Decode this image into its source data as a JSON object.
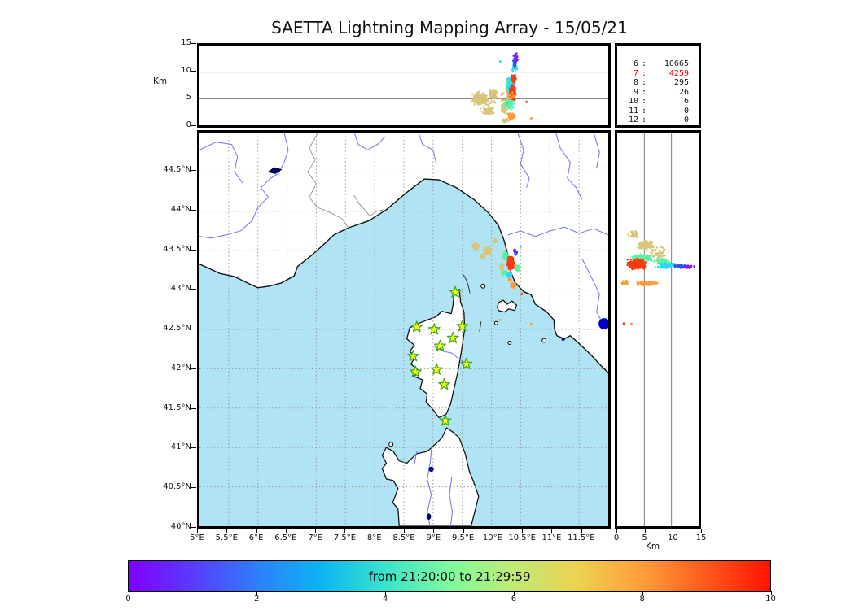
{
  "title": "SAETTA Lightning Mapping Array - 15/05/21",
  "axes": {
    "alt_axis_label": "Km",
    "alt_ticks": [
      "15",
      "10",
      "5",
      "0"
    ],
    "lat_ticks": [
      "44.5°N",
      "44°N",
      "43.5°N",
      "43°N",
      "42.5°N",
      "42°N",
      "41.5°N",
      "41°N",
      "40.5°N",
      "40°N"
    ],
    "lon_ticks": [
      "5°E",
      "5.5°E",
      "6°E",
      "6.5°E",
      "7°E",
      "7.5°E",
      "8°E",
      "8.5°E",
      "9°E",
      "9.5°E",
      "10°E",
      "10.5°E",
      "11°E",
      "11.5°E"
    ],
    "km_ticks": [
      "0",
      "5",
      "10",
      "15"
    ],
    "km_axis_label": "Km"
  },
  "stats": {
    "rows": [
      {
        "key": "6",
        "value": "10665",
        "highlight": false
      },
      {
        "key": "7",
        "value": "4259",
        "highlight": true
      },
      {
        "key": "8",
        "value": "295",
        "highlight": false
      },
      {
        "key": "9",
        "value": "26",
        "highlight": false
      },
      {
        "key": "10",
        "value": "6",
        "highlight": false
      },
      {
        "key": "11",
        "value": "0",
        "highlight": false
      },
      {
        "key": "12",
        "value": "0",
        "highlight": false
      }
    ]
  },
  "colorbar": {
    "label": "from 21:20:00 to 21:29:59",
    "ticks": [
      "0",
      "2",
      "4",
      "6",
      "8",
      "10"
    ],
    "min": 0,
    "max": 10,
    "colormap": "rainbow",
    "stops": [
      "#7f00ff",
      "#5a3bfe",
      "#2e7efb",
      "#0cb5f1",
      "#3ae3cb",
      "#7efb9e",
      "#c0ea74",
      "#ecd24f",
      "#ff9e3b",
      "#ff5a1e",
      "#ff1200"
    ]
  },
  "chart_data": {
    "type": "scatter",
    "title": "SAETTA Lightning Mapping Array - 15/05/21",
    "time_window": {
      "from": "21:20:00",
      "to": "21:29:59"
    },
    "panels": {
      "alt_vs_lon": {
        "xlim": [
          5,
          12
        ],
        "ylim": [
          0,
          15
        ],
        "ylabel": "Km",
        "yticks": [
          0,
          5,
          10,
          15
        ],
        "grid_y": [
          5,
          10
        ]
      },
      "map": {
        "lon_lim": [
          5,
          12
        ],
        "lat_lim": [
          40,
          45
        ],
        "lon_ticks": [
          5,
          5.5,
          6,
          6.5,
          7,
          7.5,
          8,
          8.5,
          9,
          9.5,
          10,
          10.5,
          11,
          11.5
        ],
        "lat_ticks": [
          40,
          40.5,
          41,
          41.5,
          42,
          42.5,
          43,
          43.5,
          44,
          44.5
        ],
        "grid": "dotted",
        "sea_color": "#b0e4f5",
        "land_color": "#ffffff",
        "river_color": "#7b7bf0",
        "border_color": "#999999",
        "lake_color": "#000080"
      },
      "alt_vs_lat": {
        "xlim": [
          0,
          15
        ],
        "xlabel": "Km",
        "xticks": [
          0,
          5,
          10,
          15
        ],
        "grid_x": [
          5,
          10
        ]
      }
    },
    "station_counts": [
      [
        "6",
        10665
      ],
      [
        "7",
        4259
      ],
      [
        "8",
        295
      ],
      [
        "9",
        26
      ],
      [
        "10",
        6
      ],
      [
        "11",
        0
      ],
      [
        "12",
        0
      ]
    ],
    "stations_lon_lat": [
      [
        9.38,
        42.97
      ],
      [
        8.72,
        42.53
      ],
      [
        9.02,
        42.5
      ],
      [
        9.5,
        42.54
      ],
      [
        9.34,
        42.39
      ],
      [
        9.12,
        42.29
      ],
      [
        8.66,
        42.16
      ],
      [
        9.57,
        42.06
      ],
      [
        9.06,
        41.99
      ],
      [
        8.7,
        41.96
      ],
      [
        9.19,
        41.8
      ],
      [
        9.21,
        41.34
      ]
    ],
    "station_marker": {
      "shape": "star",
      "fill": "#ffff00",
      "stroke": "#3aa82c"
    },
    "palette": {
      "tan": "#d9c57a",
      "green": "#5df0a0",
      "cyan": "#2bd9f2",
      "blue": "#2a52f5",
      "purple": "#8714fc",
      "red": "#f83a12",
      "orange": "#ff9a3c"
    },
    "clusters_alt_vs_lon": [
      [
        "tan",
        9.8,
        5.0,
        0.16,
        1.5,
        230
      ],
      [
        "tan",
        10.02,
        5.8,
        0.09,
        1.1,
        110
      ],
      [
        "tan",
        9.93,
        2.7,
        0.12,
        0.9,
        70
      ],
      [
        "tan",
        9.88,
        4.6,
        0.3,
        1.9,
        60
      ],
      [
        "tan",
        10.22,
        3.2,
        0.07,
        1.6,
        90
      ],
      [
        "tan",
        10.24,
        0.9,
        0.1,
        0.5,
        40
      ],
      [
        "green",
        10.32,
        7.2,
        0.08,
        2.4,
        260
      ],
      [
        "green",
        10.3,
        4.0,
        0.1,
        1.5,
        80
      ],
      [
        "cyan",
        10.34,
        7.0,
        0.12,
        3.4,
        80
      ],
      [
        "cyan",
        10.4,
        11.0,
        0.05,
        1.5,
        40
      ],
      [
        "blue",
        10.4,
        12.0,
        0.045,
        1.2,
        45
      ],
      [
        "purple",
        10.42,
        12.8,
        0.035,
        1.0,
        40
      ],
      [
        "red",
        10.36,
        6.2,
        0.055,
        1.6,
        360
      ],
      [
        "red",
        10.38,
        8.8,
        0.045,
        0.9,
        90
      ],
      [
        "orange",
        10.34,
        1.7,
        0.1,
        0.9,
        60
      ],
      [
        "orange",
        10.3,
        5.5,
        0.25,
        3.0,
        25
      ]
    ],
    "singles_alt_vs_lon": [
      [
        "orange",
        10.68,
        1.3
      ],
      [
        "red",
        10.6,
        4.4
      ],
      [
        "cyan",
        10.15,
        12.0
      ]
    ],
    "clusters_map": [
      [
        "tan",
        9.73,
        43.555,
        0.065,
        0.045,
        150
      ],
      [
        "tan",
        9.935,
        43.5,
        0.075,
        0.055,
        190
      ],
      [
        "tan",
        10.06,
        43.625,
        0.04,
        0.03,
        40
      ],
      [
        "tan",
        9.85,
        43.43,
        0.05,
        0.035,
        45
      ],
      [
        "tan",
        10.18,
        43.3,
        0.045,
        0.07,
        60
      ],
      [
        "green",
        10.24,
        43.43,
        0.06,
        0.06,
        90
      ],
      [
        "green",
        10.44,
        43.28,
        0.05,
        0.05,
        70
      ],
      [
        "green",
        10.22,
        43.22,
        0.05,
        0.04,
        50
      ],
      [
        "blue",
        10.42,
        43.47,
        0.03,
        0.03,
        18
      ],
      [
        "purple",
        10.4,
        43.5,
        0.025,
        0.025,
        14
      ],
      [
        "red",
        10.33,
        43.34,
        0.065,
        0.095,
        520
      ],
      [
        "cyan",
        10.3,
        43.195,
        0.06,
        0.035,
        90
      ],
      [
        "orange",
        10.37,
        43.06,
        0.05,
        0.04,
        110
      ],
      [
        "orange",
        10.31,
        43.13,
        0.03,
        0.025,
        35
      ]
    ],
    "singles_map": [
      [
        "orange",
        10.68,
        42.57
      ],
      [
        "orange",
        10.15,
        42.62
      ],
      [
        "red",
        10.52,
        42.95
      ],
      [
        "cyan",
        10.5,
        43.55
      ]
    ],
    "clusters_alt_vs_lat": [
      [
        "tan",
        5.2,
        43.57,
        1.6,
        0.065,
        230
      ],
      [
        "tan",
        7.5,
        43.47,
        2.6,
        0.13,
        60
      ],
      [
        "tan",
        3.0,
        43.7,
        1.2,
        0.06,
        40
      ],
      [
        "green",
        4.6,
        43.41,
        2.4,
        0.055,
        170
      ],
      [
        "green",
        8.2,
        43.36,
        1.6,
        0.05,
        70
      ],
      [
        "cyan",
        9.2,
        43.31,
        2.6,
        0.045,
        100
      ],
      [
        "blue",
        11.8,
        43.3,
        1.4,
        0.035,
        45
      ],
      [
        "purple",
        13.2,
        43.295,
        0.8,
        0.03,
        28
      ],
      [
        "red",
        3.6,
        43.33,
        1.9,
        0.075,
        480
      ],
      [
        "orange",
        5.5,
        43.085,
        2.3,
        0.035,
        130
      ],
      [
        "orange",
        1.5,
        43.09,
        0.8,
        0.04,
        25
      ]
    ],
    "singles_alt_vs_lat": [
      [
        "red",
        1.2,
        42.575
      ],
      [
        "orange",
        2.6,
        42.57
      ],
      [
        "purple",
        14.2,
        43.3
      ]
    ]
  }
}
